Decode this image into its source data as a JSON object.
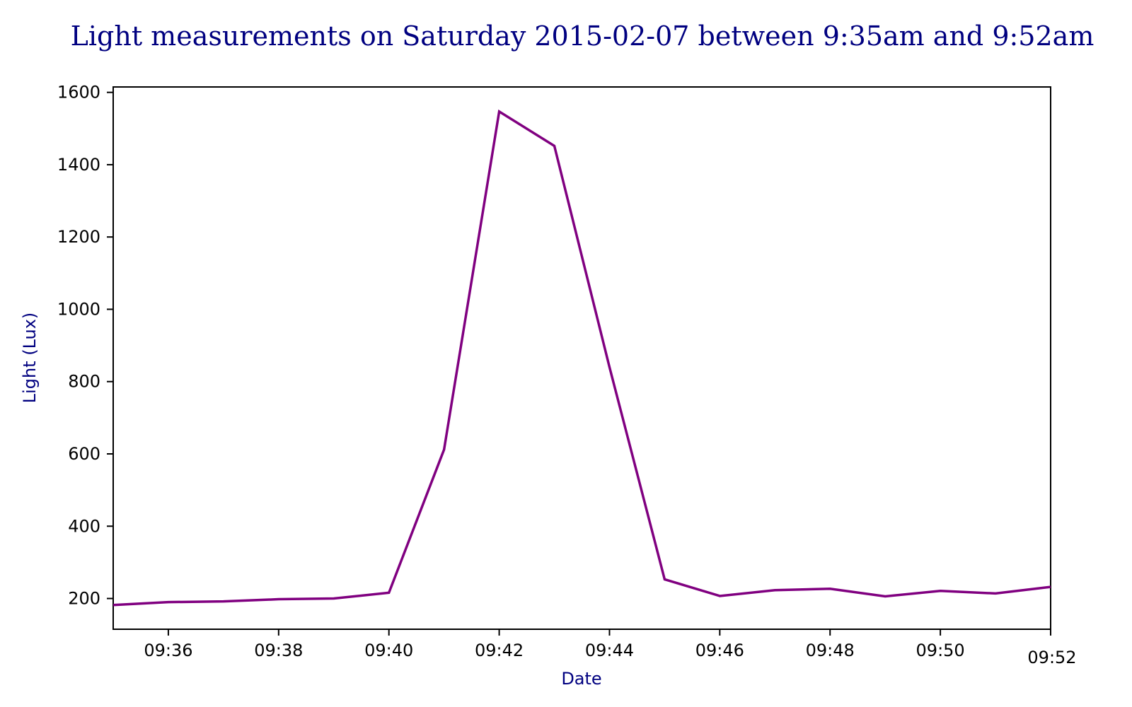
{
  "chart_data": {
    "type": "line",
    "title": "Light measurements on Saturday 2015-02-07 between 9:35am and 9:52am",
    "xlabel": "Date",
    "ylabel": "Light (Lux)",
    "x": [
      "09:35",
      "09:36",
      "09:37",
      "09:38",
      "09:39",
      "09:40",
      "09:41",
      "09:42",
      "09:43",
      "09:44",
      "09:45",
      "09:46",
      "09:47",
      "09:48",
      "09:49",
      "09:50",
      "09:51",
      "09:52"
    ],
    "series": [
      {
        "values": [
          182,
          190,
          192,
          198,
          200,
          216,
          612,
          1547,
          1452,
          840,
          253,
          207,
          223,
          227,
          206,
          221,
          214,
          232
        ],
        "color": "#800080"
      }
    ],
    "xlim": [
      "09:35",
      "09:52"
    ],
    "ylim": [
      115,
      1615
    ],
    "xticks": [
      "09:36",
      "09:38",
      "09:40",
      "09:42",
      "09:44",
      "09:46",
      "09:48",
      "09:50",
      "09:52"
    ],
    "yticks": [
      200,
      400,
      600,
      800,
      1000,
      1200,
      1400,
      1600
    ],
    "grid": false,
    "colors": {
      "title": "#000080",
      "axis_label": "#000080",
      "series": "#800080"
    }
  }
}
